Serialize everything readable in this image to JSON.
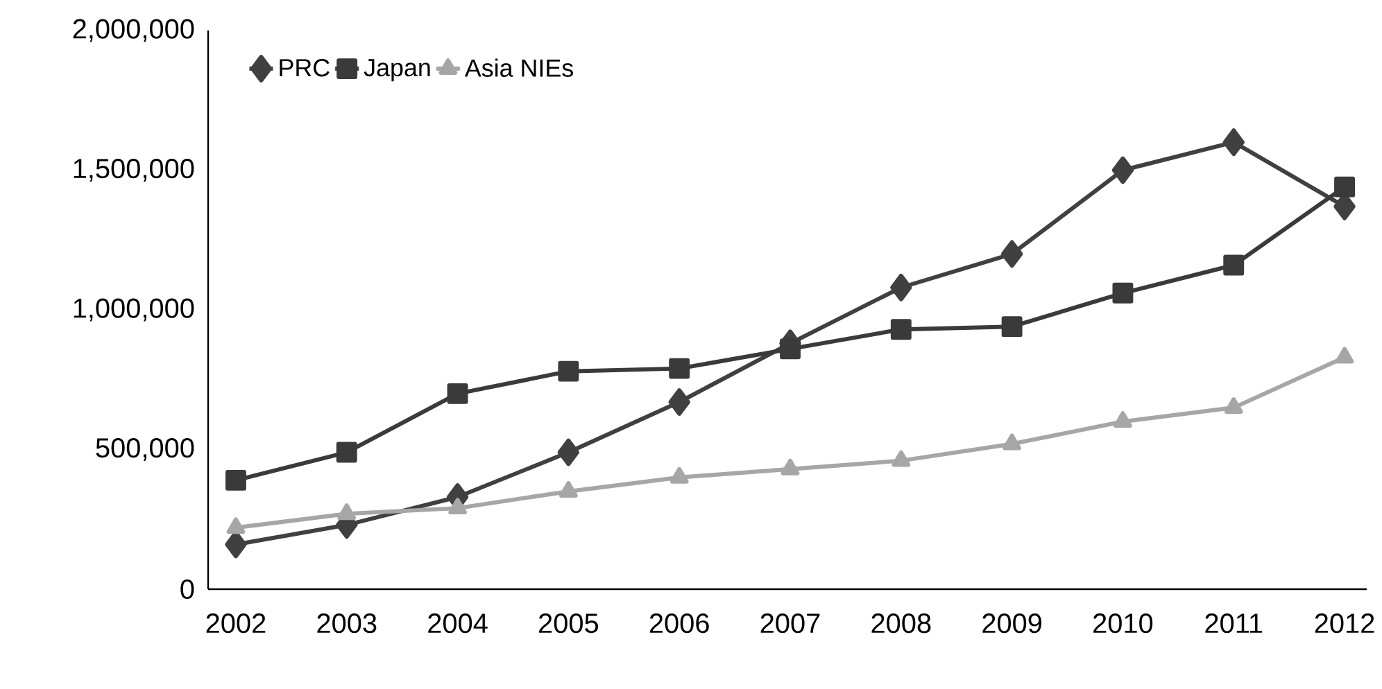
{
  "chart_data": {
    "type": "line",
    "categories": [
      "2002",
      "2003",
      "2004",
      "2005",
      "2006",
      "2007",
      "2008",
      "2009",
      "2010",
      "2011",
      "2012"
    ],
    "series": [
      {
        "name": "PRC",
        "color": "#404040",
        "marker": "diamond",
        "values": [
          160000,
          230000,
          330000,
          490000,
          670000,
          880000,
          1080000,
          1200000,
          1500000,
          1600000,
          1370000
        ]
      },
      {
        "name": "Japan",
        "color": "#3a3a3a",
        "marker": "square",
        "values": [
          390000,
          490000,
          700000,
          780000,
          790000,
          860000,
          930000,
          940000,
          1060000,
          1160000,
          1440000
        ]
      },
      {
        "name": "Asia NIEs",
        "color": "#a6a6a6",
        "marker": "triangle",
        "values": [
          220000,
          270000,
          290000,
          350000,
          400000,
          430000,
          460000,
          520000,
          600000,
          650000,
          830000
        ]
      }
    ],
    "ylim": [
      0,
      2000000
    ],
    "yticks": [
      {
        "value": 0,
        "label": "0"
      },
      {
        "value": 500000,
        "label": "500,000"
      },
      {
        "value": 1000000,
        "label": "1,000,000"
      },
      {
        "value": 1500000,
        "label": "1,500,000"
      },
      {
        "value": 2000000,
        "label": "2,000,000"
      }
    ],
    "grid": false,
    "legend": "top left",
    "line_style": "solid"
  }
}
